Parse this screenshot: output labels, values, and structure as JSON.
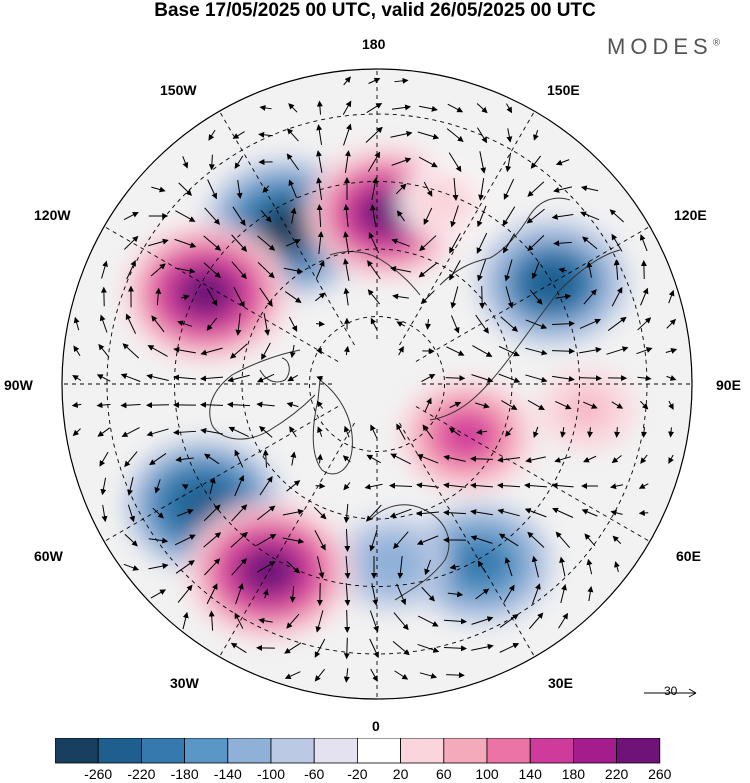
{
  "title": "Base 17/05/2025 00 UTC, valid 26/05/2025 00 UTC",
  "brand": "MODES",
  "brand_mark": "®",
  "longitude_labels": {
    "lon_180": "180",
    "lon_150w": "150W",
    "lon_150e": "150E",
    "lon_120w": "120W",
    "lon_120e": "120E",
    "lon_90w": "90W",
    "lon_90e": "90E",
    "lon_60w": "60W",
    "lon_60e": "60E",
    "lon_30w": "30W",
    "lon_30e": "30E",
    "lon_0": "0"
  },
  "reference_vector": "30",
  "colorbar": {
    "ticks": [
      "-260",
      "-220",
      "-180",
      "-140",
      "-100",
      "-60",
      "-20",
      "20",
      "60",
      "100",
      "140",
      "180",
      "220",
      "260"
    ],
    "colors": [
      "#173f5e",
      "#1f5f8f",
      "#3579ae",
      "#5b97c6",
      "#8fb1d8",
      "#bcc9e4",
      "#e4e2f0",
      "#ffffff",
      "#fad6dc",
      "#f5aabb",
      "#ec74a5",
      "#cf3b9b",
      "#a51c8c",
      "#6f1379"
    ]
  },
  "anomalies": [
    {
      "name": "low-150w",
      "value": -260,
      "lon": -150,
      "lat": 50
    },
    {
      "name": "low-120e",
      "value": -220,
      "lon": 120,
      "lat": 45
    },
    {
      "name": "low-60w",
      "value": -240,
      "lon": -55,
      "lat": 43
    },
    {
      "name": "low-30e",
      "value": -200,
      "lon": 30,
      "lat": 44
    },
    {
      "name": "low-europe",
      "value": -120,
      "lon": 5,
      "lat": 50
    },
    {
      "name": "high-180",
      "value": 240,
      "lon": 177,
      "lat": 52
    },
    {
      "name": "high-120w",
      "value": 260,
      "lon": -118,
      "lat": 47
    },
    {
      "name": "high-45w",
      "value": 260,
      "lon": -30,
      "lat": 42
    },
    {
      "name": "high-70e",
      "value": 180,
      "lon": 60,
      "lat": 67
    },
    {
      "name": "high-60e-broad",
      "value": 80,
      "lon": 83,
      "lat": 43
    },
    {
      "name": "high-160e",
      "value": 60,
      "lon": 160,
      "lat": 47
    }
  ]
}
